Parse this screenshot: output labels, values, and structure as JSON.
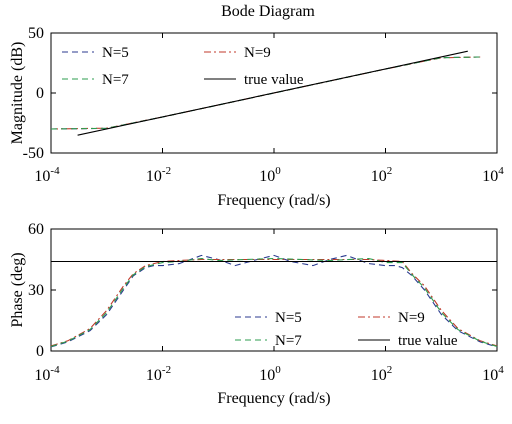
{
  "chart_data": [
    {
      "type": "line",
      "title": "Bode Diagram",
      "xlabel": "Frequency (rad/s)",
      "ylabel": "Magnitude (dB)",
      "xscale": "log",
      "xlim": [
        0.0001,
        10000
      ],
      "ylim": [
        -50,
        50
      ],
      "xticks": [
        0.0001,
        0.01,
        1,
        100,
        10000
      ],
      "xtick_labels": [
        {
          "base": "10",
          "exp": "-4"
        },
        {
          "base": "10",
          "exp": "-2"
        },
        {
          "base": "10",
          "exp": "0"
        },
        {
          "base": "10",
          "exp": "2"
        },
        {
          "base": "10",
          "exp": "4"
        }
      ],
      "yticks": [
        -50,
        0,
        50
      ],
      "ytick_labels": [
        "-50",
        "0",
        "50"
      ],
      "grid": false,
      "legend": {
        "placement": "top-left",
        "columns": 2
      },
      "series": [
        {
          "name": "N=5",
          "color": "#2b3a8f",
          "dash": "dashed",
          "x": [
            0.0001,
            0.001,
            0.01,
            0.1,
            1,
            10,
            100,
            1000,
            5000
          ],
          "y": [
            -30,
            -29.5,
            -20,
            -10,
            0,
            10,
            20,
            29.5,
            30
          ]
        },
        {
          "name": "N=9",
          "color": "#c0392b",
          "dash": "dashdot",
          "x": [
            0.0001,
            0.001,
            0.01,
            0.1,
            1,
            10,
            100,
            1000,
            5000
          ],
          "y": [
            -30,
            -29.3,
            -20,
            -10,
            0,
            10,
            20,
            29.3,
            30
          ]
        },
        {
          "name": "N=7",
          "color": "#2e9e4f",
          "dash": "dashed",
          "x": [
            0.0001,
            0.001,
            0.01,
            0.1,
            1,
            10,
            100,
            1000,
            5000
          ],
          "y": [
            -30,
            -29.4,
            -20,
            -10,
            0,
            10,
            20,
            29.4,
            30
          ]
        },
        {
          "name": "true value",
          "color": "#000000",
          "dash": "solid",
          "x": [
            0.0003,
            3000
          ],
          "y": [
            -35.2,
            34.8
          ]
        }
      ]
    },
    {
      "type": "line",
      "title": "",
      "xlabel": "Frequency (rad/s)",
      "ylabel": "Phase (deg)",
      "xscale": "log",
      "xlim": [
        0.0001,
        10000
      ],
      "ylim": [
        0,
        60
      ],
      "xticks": [
        0.0001,
        0.01,
        1,
        100,
        10000
      ],
      "xtick_labels": [
        {
          "base": "10",
          "exp": "-4"
        },
        {
          "base": "10",
          "exp": "-2"
        },
        {
          "base": "10",
          "exp": "0"
        },
        {
          "base": "10",
          "exp": "2"
        },
        {
          "base": "10",
          "exp": "4"
        }
      ],
      "yticks": [
        0,
        30,
        60
      ],
      "ytick_labels": [
        "0",
        "30",
        "60"
      ],
      "grid": false,
      "legend": {
        "placement": "bottom-right",
        "columns": 2
      },
      "series": [
        {
          "name": "N=5",
          "color": "#2b3a8f",
          "dash": "dashed",
          "x": [
            0.0001,
            0.0002,
            0.0005,
            0.001,
            0.002,
            0.003,
            0.005,
            0.007,
            0.01,
            0.02,
            0.05,
            0.1,
            0.2,
            0.5,
            1,
            2,
            5,
            10,
            20,
            50,
            100,
            150,
            200,
            300,
            500,
            1000,
            2000,
            5000,
            10000
          ],
          "y": [
            2,
            4.5,
            10,
            18,
            30,
            37,
            41,
            42,
            42,
            43,
            47,
            45,
            42,
            45,
            47,
            44,
            42,
            45,
            47,
            43,
            42,
            42,
            41,
            37,
            30,
            18,
            10,
            4.5,
            2
          ]
        },
        {
          "name": "N=9",
          "color": "#c0392b",
          "dash": "dashdot",
          "x": [
            0.0001,
            0.0002,
            0.0005,
            0.001,
            0.002,
            0.003,
            0.005,
            0.01,
            0.02,
            0.05,
            0.1,
            1,
            10,
            50,
            100,
            200,
            300,
            500,
            1000,
            2000,
            5000,
            10000
          ],
          "y": [
            2.5,
            5,
            11,
            20,
            32,
            38,
            42,
            44,
            44.5,
            45,
            45,
            45,
            45,
            45,
            44.5,
            44,
            38,
            32,
            20,
            11,
            5,
            2.5
          ]
        },
        {
          "name": "N=7",
          "color": "#2e9e4f",
          "dash": "dashed",
          "x": [
            0.0001,
            0.0002,
            0.0005,
            0.001,
            0.002,
            0.003,
            0.005,
            0.01,
            0.02,
            0.05,
            0.1,
            1,
            10,
            50,
            100,
            200,
            300,
            500,
            1000,
            2000,
            5000,
            10000
          ],
          "y": [
            2.2,
            4.8,
            10.5,
            19,
            31,
            37.5,
            41.5,
            43.5,
            44,
            45.5,
            44.5,
            45.5,
            44.5,
            45.5,
            43.5,
            43.5,
            37.5,
            31,
            19,
            10.5,
            4.8,
            2.2
          ]
        },
        {
          "name": "true value",
          "color": "#000000",
          "dash": "solid",
          "x": [
            0.0001,
            10000
          ],
          "y": [
            44,
            44
          ]
        }
      ]
    }
  ]
}
